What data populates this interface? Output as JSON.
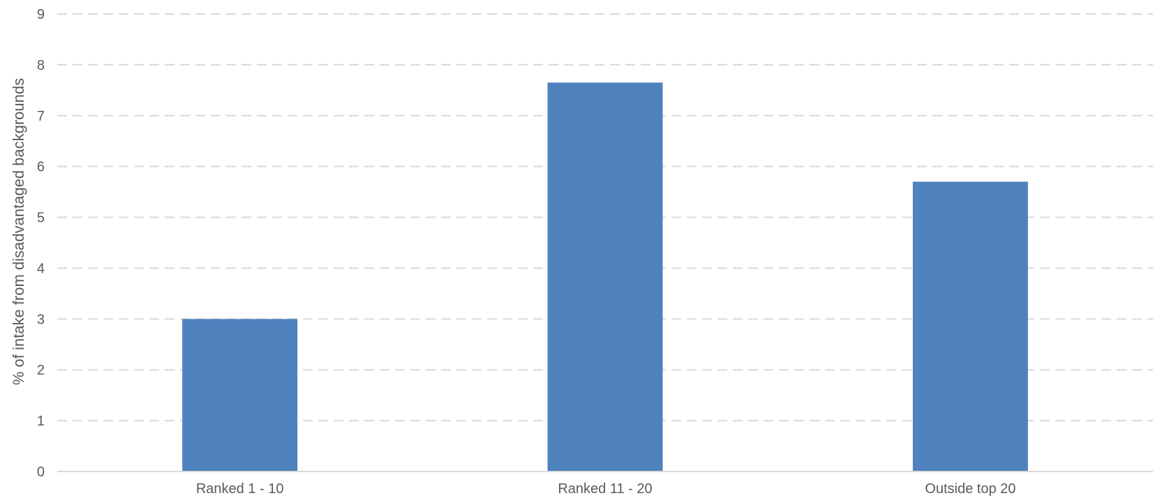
{
  "chart_data": {
    "type": "bar",
    "title": "",
    "xlabel": "",
    "ylabel": "% of intake from disadvantaged backgrounds",
    "categories": [
      "Ranked 1 - 10",
      "Ranked 11 - 20",
      "Outside top 20"
    ],
    "values": [
      3.0,
      7.65,
      5.7
    ],
    "ylim": [
      0,
      9
    ],
    "yticks": [
      0,
      1,
      2,
      3,
      4,
      5,
      6,
      7,
      8,
      9
    ],
    "grid": true,
    "legend": "none",
    "bar_color": "#4F81BD",
    "gridline_color": "#D9D9D9",
    "axis_line_color": "#D9D9D9",
    "text_color": "#595959"
  }
}
